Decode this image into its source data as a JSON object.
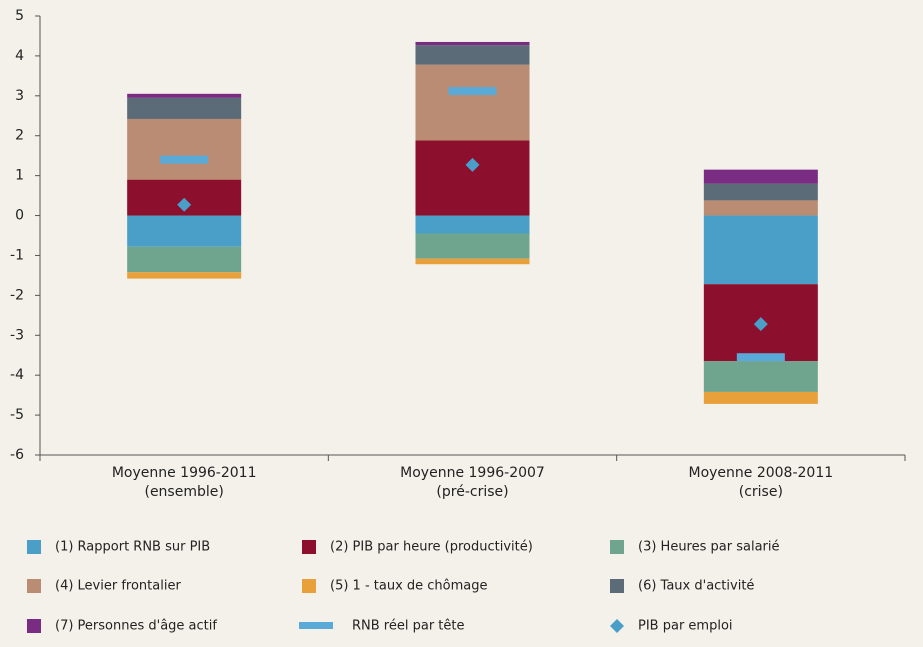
{
  "chart_data": {
    "type": "bar",
    "stacked": true,
    "categories": [
      [
        "Moyenne 1996-2011",
        "(ensemble)"
      ],
      [
        "Moyenne 1996-2007",
        "(pré-crise)"
      ],
      [
        "Moyenne 2008-2011",
        "(crise)"
      ]
    ],
    "ylim": [
      -6,
      5
    ],
    "yticks": [
      -6,
      -5,
      -4,
      -3,
      -2,
      -1,
      0,
      1,
      2,
      3,
      4,
      5
    ],
    "grid": false,
    "series": [
      {
        "name": "(1) Rapport RNB sur PIB",
        "color": "#4a9fc8",
        "values": [
          -0.78,
          -0.45,
          -1.72
        ]
      },
      {
        "name": "(2) PIB par heure (productivité)",
        "color": "#8c0f2e",
        "values": [
          0.9,
          1.88,
          -1.93
        ]
      },
      {
        "name": "(3) Heures par salarié",
        "color": "#6fa58e",
        "values": [
          -0.64,
          -0.63,
          -0.77
        ]
      },
      {
        "name": "(4) Levier frontalier",
        "color": "#b98c73",
        "values": [
          1.52,
          1.9,
          0.38
        ]
      },
      {
        "name": "(5) 1 - taux de chômage",
        "color": "#e8a13a",
        "values": [
          -0.16,
          -0.14,
          -0.3
        ]
      },
      {
        "name": "(6) Taux d'activité",
        "color": "#5b6b78",
        "values": [
          0.53,
          0.49,
          0.42
        ]
      },
      {
        "name": "(7) Personnes d'âge actif",
        "color": "#7a2b82",
        "values": [
          0.1,
          0.08,
          0.35
        ]
      },
      {
        "name": "RNB réel par tête",
        "color": "#5aaad8",
        "type": "marker",
        "marker": "dash",
        "values": [
          1.4,
          3.12,
          -3.55
        ]
      },
      {
        "name": "PIB par emploi",
        "color": "#4a9fc8",
        "type": "marker",
        "marker": "diamond",
        "values": [
          0.27,
          1.27,
          -2.72
        ]
      }
    ]
  }
}
